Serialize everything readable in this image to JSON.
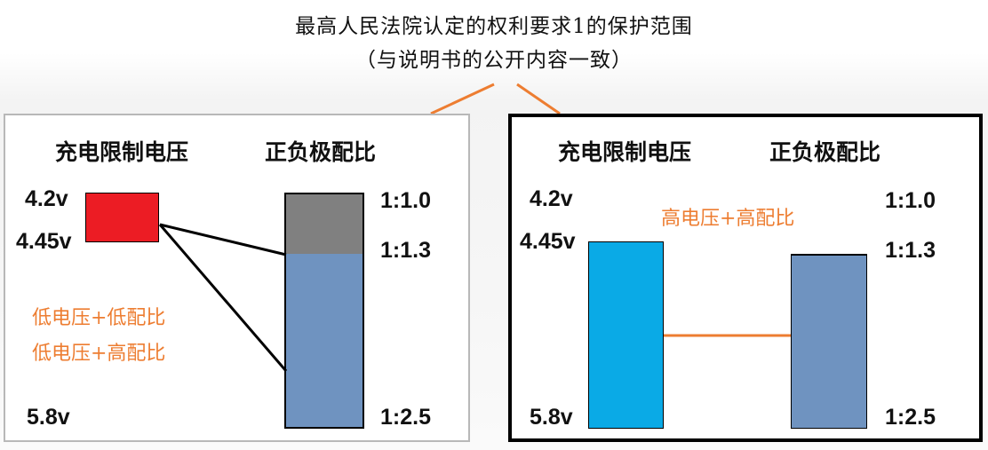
{
  "title": {
    "line1": "最高人民法院认定的权利要求1的保护范围",
    "line2": "（与说明书的公开内容一致）"
  },
  "headers": {
    "voltage": "充电限制电压",
    "ratio": "正负极配比"
  },
  "voltage_labels": {
    "v1": "4.2v",
    "v2": "4.45v",
    "v3": "5.8v"
  },
  "ratio_labels": {
    "r1": "1:1.0",
    "r2": "1:1.3",
    "r3": "1:2.5"
  },
  "left_panel": {
    "note1": "低电压+低配比",
    "note2": "低电压+高配比"
  },
  "right_panel": {
    "note": "高电压+高配比"
  },
  "colors": {
    "red_block": "#ec1c24",
    "gray_block": "#808080",
    "steel_block": "#6f93c0",
    "cyan_block": "#0aaae6",
    "orange": "#ed7d31",
    "connector_left": "#000000",
    "connector_right": "#ed7d31"
  }
}
